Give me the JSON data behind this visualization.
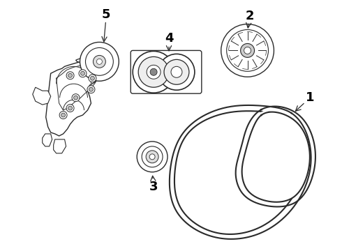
{
  "background_color": "#ffffff",
  "line_color": "#2a2a2a",
  "label_color": "#000000",
  "label_fontsize": 13,
  "label_fontweight": "bold",
  "figsize": [
    4.9,
    3.6
  ],
  "dpi": 100
}
